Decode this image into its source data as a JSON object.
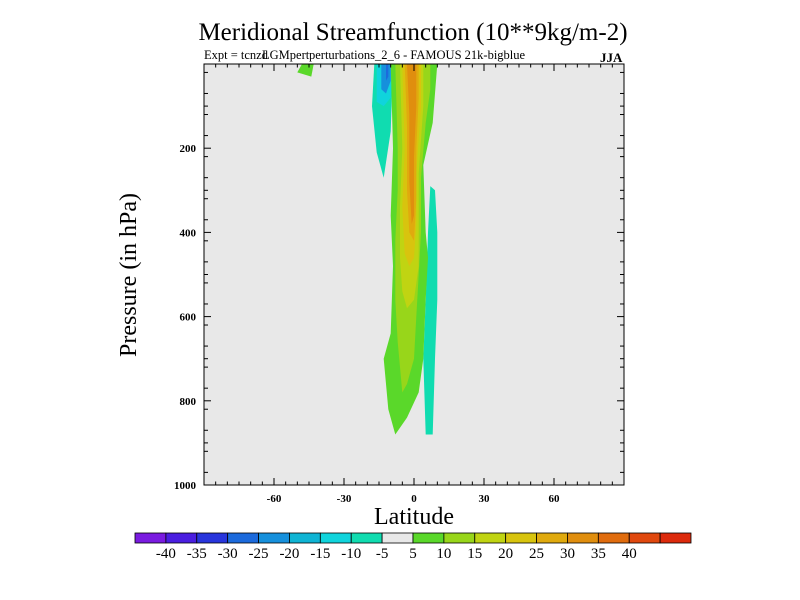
{
  "chart_data": {
    "type": "contour",
    "title": "Meridional Streamfunction (10**9kg/m-2)",
    "subtitle_left": "Expt = tcnzd",
    "subtitle_overlap": "LGMpert",
    "subtitle_main": "perturbations_2_6 - FAMOUS 21k-bigblue",
    "season": "JJA",
    "xlabel": "Latitude",
    "ylabel": "Pressure (in hPa)",
    "xlim": [
      -90,
      90
    ],
    "ylim": [
      1000,
      0
    ],
    "x_ticks": [
      -60,
      -30,
      0,
      30,
      60
    ],
    "x_tick_labels": [
      "-60",
      "-30",
      "0",
      "30",
      "60"
    ],
    "y_ticks": [
      200,
      400,
      600,
      800,
      1000
    ],
    "y_tick_labels": [
      "200",
      "400",
      "600",
      "800",
      "1000"
    ],
    "colorbar": {
      "colors": [
        "#7a1be0",
        "#4a1ee0",
        "#2835dc",
        "#1c6adc",
        "#1690dc",
        "#0fb4d4",
        "#10d4dc",
        "#10dcb0",
        "#e8e8e8",
        "#5ad82a",
        "#98d61a",
        "#c0d412",
        "#d8c40e",
        "#e0aa0e",
        "#e08e0e",
        "#e06c0e",
        "#e0480e",
        "#dc2a0c"
      ],
      "labels": [
        "-40",
        "-35",
        "-30",
        "-25",
        "-20",
        "-15",
        "-10",
        "-5",
        "5",
        "10",
        "15",
        "20",
        "25",
        "30",
        "35",
        "40"
      ]
    },
    "background_color": "#e8e8e8",
    "regions": [
      {
        "name": "nh-upper-positive-5",
        "level": "5 to 10",
        "color": "#5ad82a",
        "points": [
          [
            -48,
            0
          ],
          [
            -50,
            20
          ],
          [
            -44,
            30
          ],
          [
            -43,
            0
          ]
        ]
      },
      {
        "name": "upper-negative-5",
        "level": "-10 to -5",
        "color": "#10dcb0",
        "points": [
          [
            -17,
            0
          ],
          [
            -18,
            100
          ],
          [
            -16,
            210
          ],
          [
            -13,
            270
          ],
          [
            -10,
            160
          ],
          [
            -9,
            0
          ]
        ]
      },
      {
        "name": "upper-negative-10",
        "level": "-15 to -10",
        "color": "#10d4dc",
        "points": [
          [
            -16,
            0
          ],
          [
            -16,
            90
          ],
          [
            -13,
            100
          ],
          [
            -10,
            80
          ],
          [
            -9,
            0
          ]
        ]
      },
      {
        "name": "upper-negative-15",
        "level": "-20 to -15",
        "color": "#1690dc",
        "points": [
          [
            -14,
            0
          ],
          [
            -14,
            60
          ],
          [
            -12,
            70
          ],
          [
            -10,
            40
          ],
          [
            -10,
            0
          ]
        ]
      },
      {
        "name": "upper-negative-20",
        "level": "-25 to -20",
        "color": "#1c6adc",
        "points": [
          [
            -12,
            0
          ],
          [
            -12,
            40
          ],
          [
            -11,
            30
          ],
          [
            -11,
            0
          ]
        ]
      },
      {
        "name": "sh-negative-5",
        "level": "-10 to -5",
        "color": "#10dcb0",
        "points": [
          [
            7,
            290
          ],
          [
            9,
            300
          ],
          [
            10,
            400
          ],
          [
            10,
            560
          ],
          [
            9,
            700
          ],
          [
            8,
            880
          ],
          [
            5,
            880
          ],
          [
            4,
            700
          ],
          [
            5,
            560
          ],
          [
            6,
            400
          ]
        ]
      },
      {
        "name": "positive-5",
        "level": "5 to 10",
        "color": "#5ad82a",
        "points": [
          [
            -10,
            0
          ],
          [
            -9,
            200
          ],
          [
            -10,
            360
          ],
          [
            -9,
            480
          ],
          [
            -10,
            640
          ],
          [
            -13,
            700
          ],
          [
            -12,
            760
          ],
          [
            -11,
            820
          ],
          [
            -8,
            880
          ],
          [
            -3,
            840
          ],
          [
            2,
            780
          ],
          [
            4,
            700
          ],
          [
            5,
            560
          ],
          [
            6,
            460
          ],
          [
            5,
            400
          ],
          [
            4,
            240
          ],
          [
            8,
            140
          ],
          [
            10,
            0
          ]
        ]
      },
      {
        "name": "positive-10",
        "level": "10 to 15",
        "color": "#98d61a",
        "points": [
          [
            -8,
            0
          ],
          [
            -7,
            200
          ],
          [
            -7,
            300
          ],
          [
            -8,
            420
          ],
          [
            -8,
            560
          ],
          [
            -7,
            660
          ],
          [
            -5,
            780
          ],
          [
            -3,
            760
          ],
          [
            0,
            700
          ],
          [
            1,
            600
          ],
          [
            2,
            500
          ],
          [
            3,
            400
          ],
          [
            3,
            270
          ],
          [
            5,
            140
          ],
          [
            7,
            60
          ],
          [
            7,
            0
          ]
        ]
      },
      {
        "name": "positive-15",
        "level": "15 to 20",
        "color": "#c0d412",
        "points": [
          [
            -6,
            0
          ],
          [
            -5,
            200
          ],
          [
            -6,
            340
          ],
          [
            -6,
            460
          ],
          [
            -5,
            540
          ],
          [
            -3,
            580
          ],
          [
            0,
            560
          ],
          [
            2,
            480
          ],
          [
            2,
            360
          ],
          [
            2,
            260
          ],
          [
            4,
            100
          ],
          [
            4,
            0
          ]
        ]
      },
      {
        "name": "positive-20",
        "level": "20 to 25",
        "color": "#d8c40e",
        "points": [
          [
            -5,
            0
          ],
          [
            -4,
            200
          ],
          [
            -5,
            340
          ],
          [
            -4,
            450
          ],
          [
            -2,
            480
          ],
          [
            0,
            460
          ],
          [
            1,
            380
          ],
          [
            1,
            260
          ],
          [
            3,
            100
          ],
          [
            3,
            0
          ]
        ]
      },
      {
        "name": "positive-25",
        "level": "25 to 30",
        "color": "#e0aa0e",
        "points": [
          [
            -4,
            0
          ],
          [
            -3,
            150
          ],
          [
            -3,
            300
          ],
          [
            -2,
            400
          ],
          [
            0,
            420
          ],
          [
            1,
            320
          ],
          [
            1,
            200
          ],
          [
            2,
            80
          ],
          [
            2,
            0
          ]
        ]
      },
      {
        "name": "positive-30",
        "level": "30 to 35",
        "color": "#e08e0e",
        "points": [
          [
            -3,
            0
          ],
          [
            -2,
            120
          ],
          [
            -2,
            280
          ],
          [
            -1,
            380
          ],
          [
            0,
            360
          ],
          [
            0,
            220
          ],
          [
            1,
            100
          ],
          [
            1,
            0
          ]
        ]
      }
    ]
  }
}
